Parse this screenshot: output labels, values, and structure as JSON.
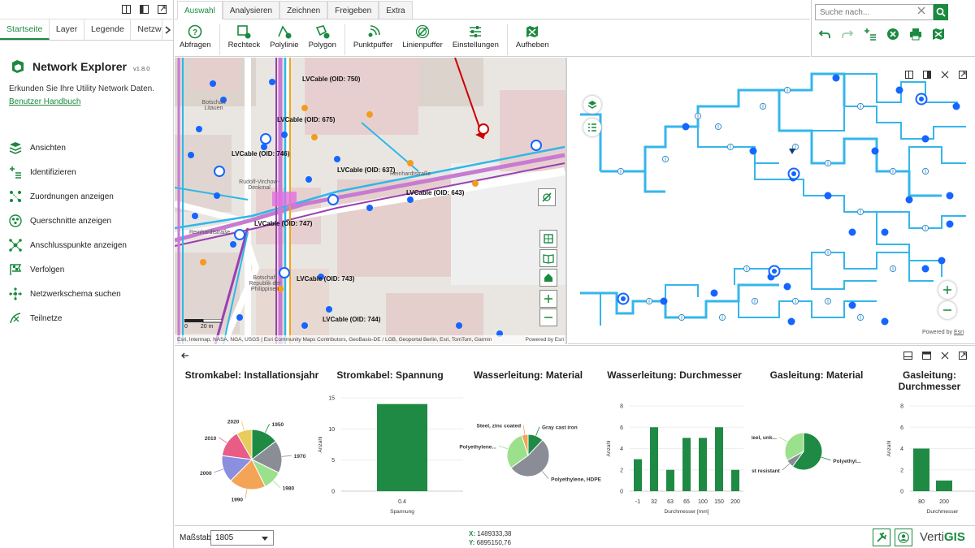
{
  "left_panel": {
    "tabs": [
      "Startseite",
      "Layer",
      "Legende",
      "Netzwerkschema"
    ],
    "app_title": "Network Explorer",
    "version": "v1.8.0",
    "description": "Erkunden Sie Ihre Utility Network Daten.",
    "manual_link": "Benutzer Handbuch",
    "menu": [
      {
        "label": "Ansichten",
        "icon": "layers-icon"
      },
      {
        "label": "Identifizieren",
        "icon": "identify-icon"
      },
      {
        "label": "Zuordnungen anzeigen",
        "icon": "associations-icon"
      },
      {
        "label": "Querschnitte anzeigen",
        "icon": "cross-section-icon"
      },
      {
        "label": "Anschlusspunkte anzeigen",
        "icon": "connection-points-icon"
      },
      {
        "label": "Verfolgen",
        "icon": "trace-icon"
      },
      {
        "label": "Netzwerkschema suchen",
        "icon": "schema-search-icon"
      },
      {
        "label": "Teilnetze",
        "icon": "subnetworks-icon"
      }
    ]
  },
  "ribbon": {
    "tabs": [
      "Auswahl",
      "Analysieren",
      "Zeichnen",
      "Freigeben",
      "Extra"
    ],
    "active_tab": "Auswahl",
    "buttons": [
      {
        "label": "Abfragen",
        "icon": "query-icon"
      },
      {
        "label": "Rechteck",
        "icon": "rectangle-icon"
      },
      {
        "label": "Polylinie",
        "icon": "polyline-icon"
      },
      {
        "label": "Polygon",
        "icon": "polygon-icon"
      },
      {
        "label": "Punktpuffer",
        "icon": "point-buffer-icon"
      },
      {
        "label": "Linienpuffer",
        "icon": "line-buffer-icon"
      },
      {
        "label": "Einstellungen",
        "icon": "settings-icon"
      },
      {
        "label": "Aufheben",
        "icon": "clear-selection-icon"
      }
    ]
  },
  "search": {
    "placeholder": "Suche nach..."
  },
  "map": {
    "labels": [
      "LVCable (OID: 750)",
      "LVCable (OID: 675)",
      "LVCable (OID: 746)",
      "LVCable (OID: 637)",
      "LVCable (OID: 643)",
      "LVCable (OID: 747)",
      "LVCable (OID: 743)",
      "LVCable (OID: 744)"
    ],
    "streets": [
      "Botschaft Litauen",
      "Rudolf-Virchow-Denkmal",
      "Reinhardtstraße",
      "Botschaft Republik der Philippinen",
      "Reinhardtstraße"
    ],
    "scale": {
      "zero": "0",
      "distance": "20 m"
    },
    "attribution": "Esri, Intermap, NASA, NGA, USGS | Esri Community Maps Contributors, GeoBasis-DE / LGB, Geoportal Berlin, Esri, TomTom, Garmin",
    "powered_by": "Powered by Esri"
  },
  "schema": {
    "powered_by": "Powered by",
    "powered_link": "Esri"
  },
  "charts": [
    {
      "title": "Stromkabel: Installationsjahr",
      "chart_data": {
        "type": "pie",
        "labels": [
          "1950",
          "1970",
          "1980",
          "1990",
          "2000",
          "2010",
          "2020"
        ],
        "values": [
          14,
          17,
          10,
          19,
          14,
          14,
          8
        ],
        "colors": [
          "#1e8a44",
          "#8a8d96",
          "#9be08a",
          "#f4a456",
          "#8b8fe0",
          "#e85c86",
          "#e8cc5c"
        ]
      }
    },
    {
      "title": "Stromkabel: Spannung",
      "chart_data": {
        "type": "bar",
        "categories": [
          "0.4"
        ],
        "values": [
          14
        ],
        "xlabel": "Spannung",
        "ylabel": "Anzahl",
        "ylim": [
          0,
          15
        ],
        "yticks": [
          0,
          5,
          10,
          15
        ]
      }
    },
    {
      "title": "Wasserleitung: Material",
      "chart_data": {
        "type": "pie",
        "labels": [
          "Gray cast iron",
          "Polyethylene, HDPE",
          "Polyethylene...",
          "Steel, zinc coated"
        ],
        "values": [
          12,
          53,
          30,
          5
        ],
        "colors": [
          "#1e8a44",
          "#8a8d96",
          "#9be08a",
          "#f4a456"
        ]
      }
    },
    {
      "title": "Wasserleitung: Durchmesser",
      "chart_data": {
        "type": "bar",
        "categories": [
          "-1",
          "32",
          "63",
          "65",
          "100",
          "150",
          "200"
        ],
        "values": [
          3,
          6,
          2,
          5,
          5,
          6,
          2
        ],
        "xlabel": "Durchmesser [mm]",
        "ylabel": "Anzahl",
        "ylim": [
          0,
          8
        ],
        "yticks": [
          0,
          2,
          4,
          6,
          8
        ]
      }
    },
    {
      "title": "Gasleitung: Material",
      "chart_data": {
        "type": "pie",
        "labels": [
          "Polyethyl...",
          "Steel, rust resistant",
          "Steel, unk..."
        ],
        "values": [
          60,
          7,
          33
        ],
        "colors": [
          "#1e8a44",
          "#8a8d96",
          "#9be08a"
        ]
      }
    },
    {
      "title": "Gasleitung: Durchmesser",
      "chart_data": {
        "type": "bar",
        "categories": [
          "80",
          "200"
        ],
        "values": [
          4,
          1
        ],
        "xlabel": "Durchmesser",
        "ylabel": "Anzahl",
        "ylim": [
          0,
          8
        ],
        "yticks": [
          0,
          2,
          4,
          6,
          8
        ]
      }
    }
  ],
  "bottom": {
    "scale_label": "Maßstab",
    "scale_value": "1805",
    "x_label": "X:",
    "x_value": "1489333,38",
    "y_label": "Y:",
    "y_value": "6895150,76",
    "logo_a": "Verti",
    "logo_b": "GIS"
  }
}
